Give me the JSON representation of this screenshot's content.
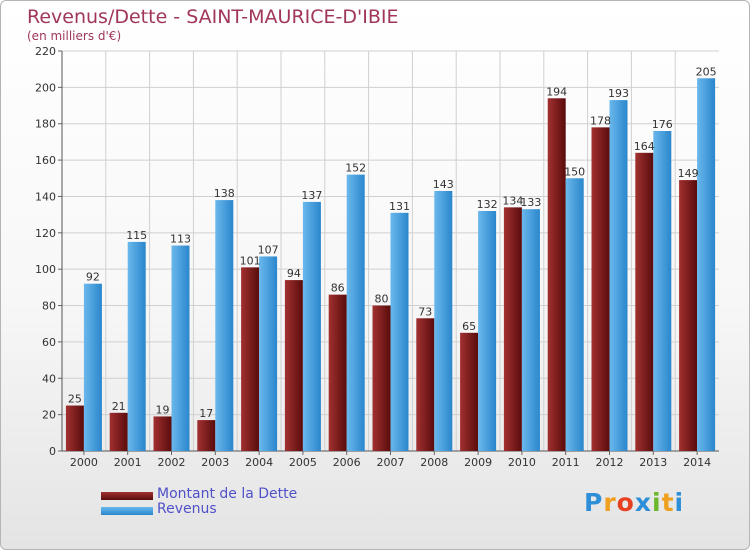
{
  "title": "Revenus/Dette - SAINT-MAURICE-D'IBIE",
  "subtitle": "(en milliers d'€)",
  "colors": {
    "dette": "#7a1818",
    "revenus": "#3e9fe0",
    "title": "#a0365a",
    "legend_text": "#5050c8",
    "grid": "#d0d0d0"
  },
  "legend": [
    {
      "label": "Montant de la Dette",
      "color": "#7a1818"
    },
    {
      "label": "Revenus",
      "color": "#3e9fe0"
    }
  ],
  "logo": {
    "letters": [
      "P",
      "r",
      "o",
      "x",
      "i",
      "t",
      "i"
    ],
    "colors": [
      "#2e8fd8",
      "#f0a020",
      "#e84020",
      "#2e8fd8",
      "#6cb82c",
      "#f0a020",
      "#2e8fd8"
    ]
  },
  "chart_data": {
    "type": "bar",
    "categories": [
      "2000",
      "2001",
      "2002",
      "2003",
      "2004",
      "2005",
      "2006",
      "2007",
      "2008",
      "2009",
      "2010",
      "2011",
      "2012",
      "2013",
      "2014"
    ],
    "series": [
      {
        "name": "Montant de la Dette",
        "values": [
          25,
          21,
          19,
          17,
          101,
          94,
          86,
          80,
          73,
          65,
          134,
          194,
          178,
          164,
          149
        ]
      },
      {
        "name": "Revenus",
        "values": [
          92,
          115,
          113,
          138,
          107,
          137,
          152,
          131,
          143,
          132,
          133,
          150,
          193,
          176,
          205
        ]
      }
    ],
    "title": "Revenus/Dette - SAINT-MAURICE-D'IBIE",
    "ylabel": "(en milliers d'€)",
    "ylim": [
      0,
      220
    ],
    "yticks": [
      0,
      20,
      40,
      60,
      80,
      100,
      120,
      140,
      160,
      180,
      200,
      220
    ],
    "grid": true,
    "legend_position": "bottom-left"
  }
}
